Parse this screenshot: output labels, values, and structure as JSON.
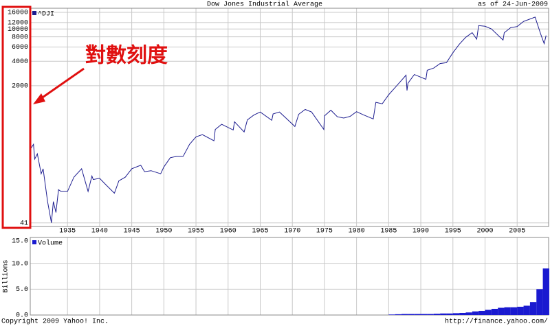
{
  "chart_data": [
    {
      "type": "line",
      "title": "Dow Jones Industrial Average",
      "subtitle": "as of 24-Jun-2009",
      "annotation": "對數刻度",
      "log_scale": true,
      "grid": true,
      "xlim": [
        1929.2,
        2009.9
      ],
      "xticks": [
        1935,
        1940,
        1945,
        1950,
        1955,
        1960,
        1965,
        1970,
        1975,
        1980,
        1985,
        1990,
        1995,
        2000,
        2005
      ],
      "ylim": [
        37,
        18000
      ],
      "yticks": [
        41,
        2000,
        4000,
        6000,
        8000,
        10000,
        12000,
        16000
      ],
      "x": [
        1929.2,
        1929.7,
        1929.9,
        1930.3,
        1930.9,
        1931.2,
        1931.9,
        1932.5,
        1932.8,
        1933.2,
        1933.6,
        1934,
        1935,
        1936,
        1937.2,
        1938.2,
        1938.8,
        1939,
        1940,
        1941,
        1942.3,
        1943,
        1944,
        1945,
        1946.4,
        1947,
        1948,
        1949.5,
        1950,
        1951,
        1952,
        1953,
        1954,
        1955,
        1956,
        1957.8,
        1958,
        1959,
        1960.8,
        1961,
        1962.5,
        1963,
        1964,
        1965,
        1966.8,
        1967,
        1968,
        1969,
        1970.4,
        1971,
        1972,
        1973,
        1974.9,
        1975,
        1976,
        1977,
        1978,
        1979,
        1980,
        1981,
        1982.6,
        1983,
        1984,
        1985,
        1986,
        1987.7,
        1987.85,
        1988,
        1989,
        1990.8,
        1991,
        1992,
        1993,
        1994,
        1995,
        1996,
        1997,
        1998,
        1998.7,
        1999,
        2000,
        2001,
        2002.8,
        2003,
        2004,
        2005,
        2006,
        2007.8,
        2008,
        2008.7,
        2009.2,
        2009.5
      ],
      "series": [
        {
          "name": "^DJI",
          "color": "#1c1c8f",
          "values": [
            330,
            380,
            250,
            290,
            165,
            190,
            75,
            41,
            75,
            55,
            105,
            100,
            100,
            150,
            190,
            100,
            155,
            140,
            145,
            120,
            95,
            135,
            150,
            190,
            210,
            175,
            180,
            165,
            200,
            260,
            270,
            270,
            380,
            470,
            500,
            420,
            580,
            670,
            570,
            720,
            540,
            760,
            870,
            950,
            750,
            900,
            950,
            800,
            630,
            890,
            1020,
            950,
            580,
            850,
            1000,
            830,
            800,
            840,
            960,
            880,
            780,
            1250,
            1200,
            1550,
            1900,
            2700,
            1750,
            2150,
            2750,
            2400,
            3100,
            3300,
            3750,
            3850,
            5100,
            6500,
            7900,
            9000,
            7500,
            11000,
            10800,
            10000,
            7300,
            9000,
            10400,
            10700,
            12400,
            14000,
            12500,
            8500,
            6600,
            8300
          ]
        }
      ]
    },
    {
      "type": "bar",
      "ylabel": "Billions",
      "grid": true,
      "xlim": [
        1929.2,
        2009.9
      ],
      "ylim": [
        0,
        15
      ],
      "yticks": [
        {
          "value": 0,
          "label": "0.0"
        },
        {
          "value": 5,
          "label": "5.0"
        },
        {
          "value": 10,
          "label": "10.0"
        },
        {
          "value": 15,
          "label": "15.0"
        }
      ],
      "x": [
        1985,
        1986,
        1987,
        1988,
        1989,
        1990,
        1991,
        1992,
        1993,
        1994,
        1995,
        1996,
        1997,
        1998,
        1999,
        2000,
        2001,
        2002,
        2003,
        2004,
        2005,
        2006,
        2007,
        2008,
        2009
      ],
      "series": [
        {
          "name": "Volume",
          "color": "#1a1ad0",
          "values": [
            0.1,
            0.15,
            0.2,
            0.2,
            0.2,
            0.2,
            0.2,
            0.25,
            0.3,
            0.3,
            0.35,
            0.4,
            0.5,
            0.7,
            0.8,
            1.0,
            1.2,
            1.4,
            1.5,
            1.5,
            1.6,
            1.8,
            2.5,
            5,
            9
          ]
        }
      ]
    }
  ],
  "footer": {
    "copyright": "Copyright 2009 Yahoo! Inc.",
    "url": "http://finance.yahoo.com/"
  }
}
